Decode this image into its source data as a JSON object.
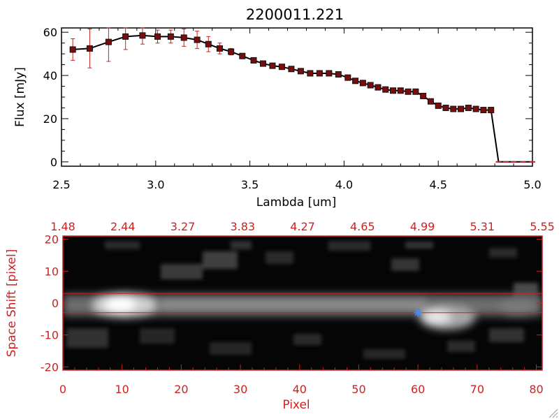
{
  "chart_data": [
    {
      "type": "line",
      "title": "2200011.221",
      "xlabel": "Lambda [um]",
      "ylabel": "Flux [mJy]",
      "xlim": [
        2.5,
        5.0
      ],
      "ylim": [
        -2,
        62
      ],
      "xticks": [
        "2.5",
        "3.0",
        "3.5",
        "4.0",
        "4.5",
        "5.0"
      ],
      "yticks": [
        "0",
        "20",
        "40",
        "60"
      ],
      "grid": false,
      "series": [
        {
          "x": [
            2.56,
            2.65,
            2.75,
            2.84,
            2.93,
            3.01,
            3.08,
            3.15,
            3.22,
            3.28,
            3.34,
            3.4,
            3.46,
            3.52,
            3.57,
            3.62,
            3.67,
            3.72,
            3.77,
            3.82,
            3.87,
            3.92,
            3.97,
            4.02,
            4.06,
            4.1,
            4.14,
            4.18,
            4.22,
            4.26,
            4.3,
            4.34,
            4.38,
            4.42,
            4.46,
            4.5,
            4.54,
            4.58,
            4.62,
            4.66,
            4.7,
            4.74,
            4.78,
            4.82,
            4.86,
            4.9,
            4.95,
            5.0
          ],
          "y": [
            52,
            52.5,
            55.5,
            58,
            58.5,
            58,
            58,
            57.5,
            56.5,
            54.5,
            52.5,
            51,
            49,
            47,
            45.5,
            44.5,
            44,
            43,
            42,
            41,
            41,
            41,
            40.5,
            39,
            37.5,
            36.5,
            35.5,
            34.5,
            33.5,
            33,
            33,
            32.5,
            32.5,
            30.5,
            28,
            26,
            25,
            24.5,
            24.5,
            25,
            24.5,
            24,
            24,
            0,
            0,
            0,
            0,
            0
          ],
          "yerr": [
            5,
            9,
            9,
            6,
            4,
            3,
            3,
            4,
            4,
            3.5,
            2.5,
            1.5,
            1,
            1,
            1,
            1,
            1,
            1,
            1,
            1,
            1,
            1,
            1,
            1,
            1,
            1,
            1,
            1,
            1,
            1,
            1,
            1,
            1,
            1,
            1,
            1,
            1,
            1,
            1,
            1,
            1,
            1,
            1,
            0,
            0,
            0,
            0,
            0
          ],
          "color": "#cc2222",
          "line_color": "#000000"
        }
      ]
    },
    {
      "type": "heatmap",
      "xlabel": "Pixel",
      "ylabel": "Space Shift [pixel]",
      "xlim": [
        0,
        81
      ],
      "ylim": [
        -21,
        21
      ],
      "xticks": [
        "0",
        "10",
        "20",
        "30",
        "40",
        "50",
        "60",
        "70",
        "80"
      ],
      "yticks": [
        "20",
        "10",
        "0",
        "-10",
        "-20"
      ],
      "top_axis_ticks": [
        "1.48",
        "2.44",
        "3.27",
        "3.83",
        "4.27",
        "4.65",
        "4.99",
        "5.31",
        "5.55"
      ],
      "aperture_lines_y": [
        3,
        -3
      ],
      "marker": {
        "x": 60,
        "y": -3,
        "symbol": "star",
        "color": "#4488ff"
      },
      "colormap": "grayscale",
      "axis_color": "#cc2222"
    }
  ]
}
